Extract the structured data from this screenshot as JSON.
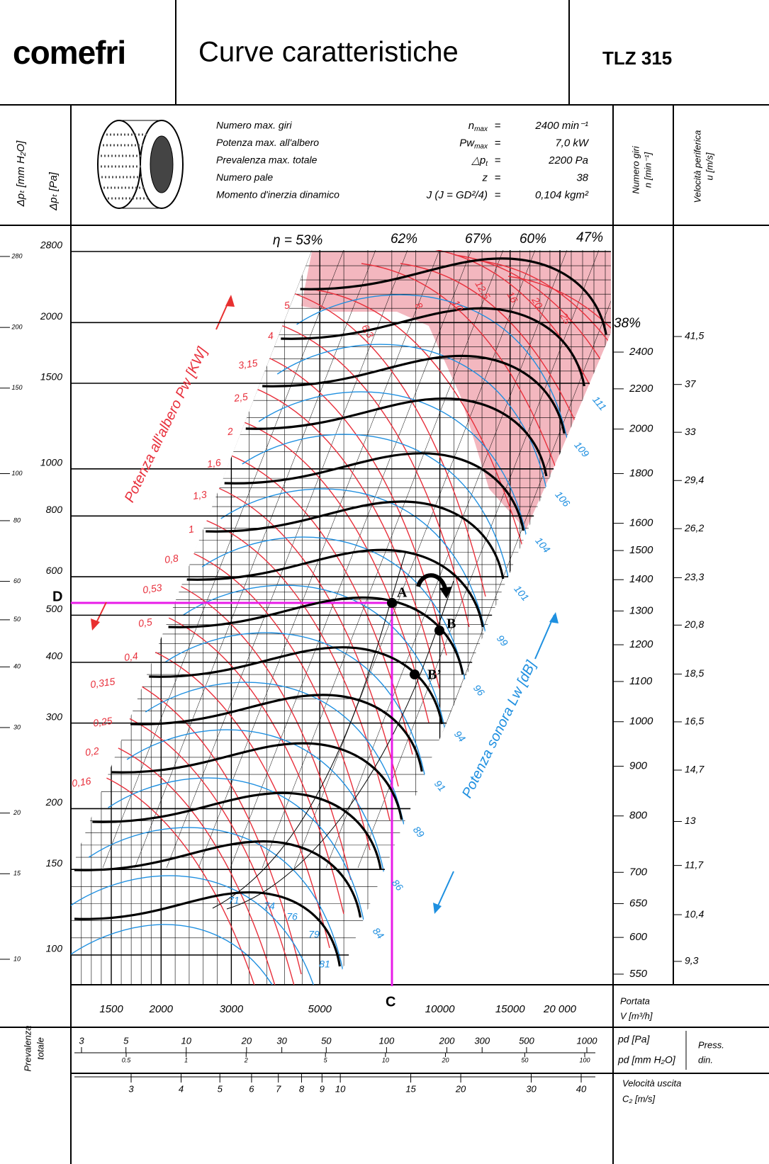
{
  "header": {
    "logo": "comefri",
    "title": "Curve caratteristiche",
    "model": "TLZ 315"
  },
  "axis_titles": {
    "pressure_mm": "Δpₜ [mm H₂O]",
    "pressure_pa": "Δpₜ [Pa]",
    "speed": [
      "Numero giri",
      "n [min⁻¹]"
    ],
    "peripheral_velocity": [
      "Velocità periferica",
      "u [m/s]"
    ],
    "shaft_power": "Potenza all'albero Pw [KW]",
    "sound_power": "Potenza sonora Lw [dB]",
    "flow": [
      "Portata",
      "V [m³/h]"
    ],
    "pd_pa": "pd [Pa]",
    "pd_mm": "pd [mm H₂O]",
    "dynamic_pressure": [
      "Press.",
      "din."
    ],
    "outlet_velocity": [
      "Velocità uscita",
      "C₂ [m/s]"
    ],
    "total_pressure": [
      "Prevalenza",
      "totale"
    ]
  },
  "equals": "=",
  "specs": [
    {
      "label": "Numero max. giri",
      "symbol": "n",
      "sub": "max",
      "value": "2400 min⁻¹"
    },
    {
      "label": "Potenza max. all'albero",
      "symbol": "Pw",
      "sub": "max",
      "value": "7,0 kW"
    },
    {
      "label": "Prevalenza max. totale",
      "symbol": "△p",
      "sub": "t",
      "value": "2200 Pa"
    },
    {
      "label": "Numero pale",
      "symbol": "z",
      "value": "38"
    },
    {
      "label": "Momento d'inerzia dinamico",
      "symbol": "J (J = GD²/4)",
      "value": "0,104 kgm²"
    }
  ],
  "efficiency": [
    "η = 53%",
    "62%",
    "67%",
    "60%",
    "47%",
    "38%"
  ],
  "pressure_pa_ticks": [
    2800,
    2000,
    1500,
    1000,
    800,
    600,
    500,
    400,
    300,
    200,
    150,
    100
  ],
  "pressure_mm_ticks": [
    280,
    200,
    150,
    100,
    80,
    60,
    50,
    40,
    30,
    20,
    15,
    10
  ],
  "speed_ticks": [
    2400,
    2200,
    2000,
    1800,
    1600,
    1500,
    1400,
    1300,
    1200,
    1100,
    1000,
    900,
    800,
    700,
    650,
    600,
    550
  ],
  "velocity_ticks": [
    {
      "value": 41.5,
      "label": "41,5"
    },
    37,
    33,
    {
      "value": 29.4,
      "label": "29,4"
    },
    {
      "value": 26.2,
      "label": "26,2"
    },
    {
      "value": 23.3,
      "label": "23,3"
    },
    {
      "value": 20.8,
      "label": "20,8"
    },
    {
      "value": 18.5,
      "label": "18,5"
    },
    {
      "value": 16.5,
      "label": "16,5"
    },
    {
      "value": 14.7,
      "label": "14,7"
    },
    13,
    {
      "value": 11.7,
      "label": "11,7"
    },
    {
      "value": 10.4,
      "label": "10,4"
    },
    {
      "value": 9.3,
      "label": "9,3"
    }
  ],
  "flow_ticks": [
    1500,
    2000,
    3000,
    5000,
    10000,
    15000,
    {
      "value": 20000,
      "label": "20 000"
    }
  ],
  "pd_pa_ticks": [
    3,
    5,
    10,
    20,
    30,
    50,
    100,
    200,
    300,
    500,
    1000
  ],
  "pd_mm_ticks": [
    0.5,
    1,
    2,
    5,
    10,
    20,
    50,
    100
  ],
  "outlet_velocity_ticks": [
    3,
    4,
    5,
    6,
    7,
    8,
    9,
    10,
    15,
    20,
    30,
    40
  ],
  "power_labels": [
    "5",
    "4",
    "3,15",
    "2,5",
    "2",
    "1,6",
    "1,3",
    "1",
    "0,8",
    "0,53",
    "0,5",
    "0,4",
    "0,315",
    "0,25",
    "0,2",
    "0,16",
    "6,3",
    "8",
    "10",
    "12,5",
    "16",
    "20",
    "25"
  ],
  "sound_labels": [
    111,
    109,
    106,
    104,
    101,
    99,
    96,
    94,
    91,
    89,
    86,
    84,
    81,
    79,
    76,
    74,
    71
  ],
  "points": {
    "A": "A",
    "B": "B",
    "B_prime": "B’",
    "C": "C",
    "D": "D"
  }
}
